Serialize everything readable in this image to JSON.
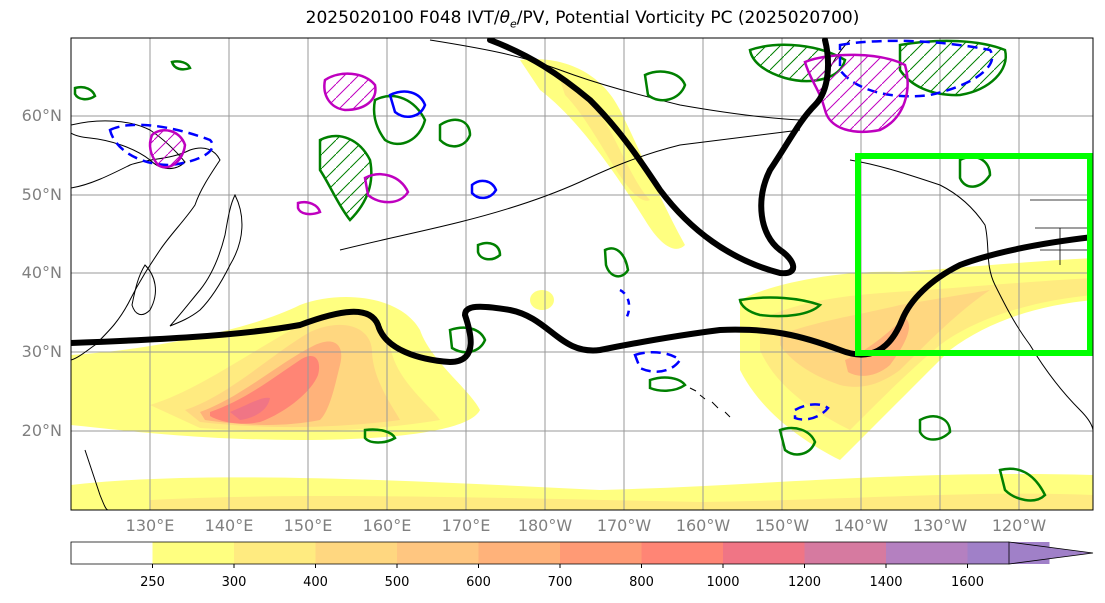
{
  "title": {
    "prefix": "2025020100 F048 IVT/",
    "theta": "θ",
    "theta_sub": "e",
    "suffix": "/PV, Potential Vorticity PC (2025020700)"
  },
  "map": {
    "lat_labels": [
      "60°N",
      "50°N",
      "40°N",
      "30°N",
      "20°N"
    ],
    "lon_labels": [
      "130°E",
      "140°E",
      "150°E",
      "160°E",
      "170°E",
      "180°W",
      "170°W",
      "160°W",
      "150°W",
      "140°W",
      "130°W",
      "120°W"
    ],
    "highlight_box_color": "#00ff00",
    "contour_colors": {
      "jet_contour": "#000000",
      "pv_green": "#008000",
      "pv_blue": "#0000ff",
      "pv_magenta": "#bf00bf"
    }
  },
  "colorbar": {
    "labels": [
      "250",
      "300",
      "400",
      "500",
      "600",
      "700",
      "800",
      "1000",
      "1200",
      "1400",
      "1600"
    ],
    "colors": [
      "#ffffff",
      "#ffff80",
      "#ffeb80",
      "#ffd780",
      "#ffc680",
      "#ffb27a",
      "#ff9a75",
      "#ff8575",
      "#f07585",
      "#d67aa0",
      "#b480c0",
      "#a080c8"
    ]
  }
}
